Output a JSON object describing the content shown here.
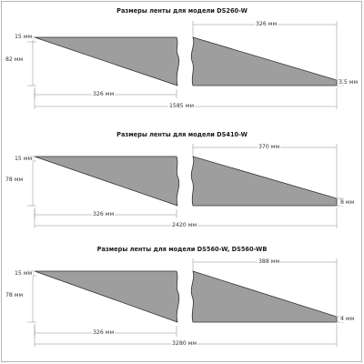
{
  "colors": {
    "strip_fill": "#9e9e9e",
    "strip_stroke": "#2f2f2f",
    "dim_line": "#8a8a8a"
  },
  "sections": [
    {
      "title": "Размеры ленты для модели DS260-W",
      "left_height_top": "15 мм",
      "left_height_total": "82 мм",
      "left_length": "326 мм",
      "right_length": "326 мм",
      "right_end_height": "3,5 мм",
      "total_length": "1585 мм"
    },
    {
      "title": "Размеры ленты для модели DS410-W",
      "left_height_top": "15 мм",
      "left_height_total": "78 мм",
      "left_length": "326 мм",
      "right_length": "370 мм",
      "right_end_height": "8 мм",
      "total_length": "2420 мм"
    },
    {
      "title": "Размеры ленты для модели DS560-W, DS560-WB",
      "left_height_top": "15 мм",
      "left_height_total": "78 мм",
      "left_length": "326 мм",
      "right_length": "388 мм",
      "right_end_height": "4 мм",
      "total_length": "3280 мм"
    }
  ]
}
